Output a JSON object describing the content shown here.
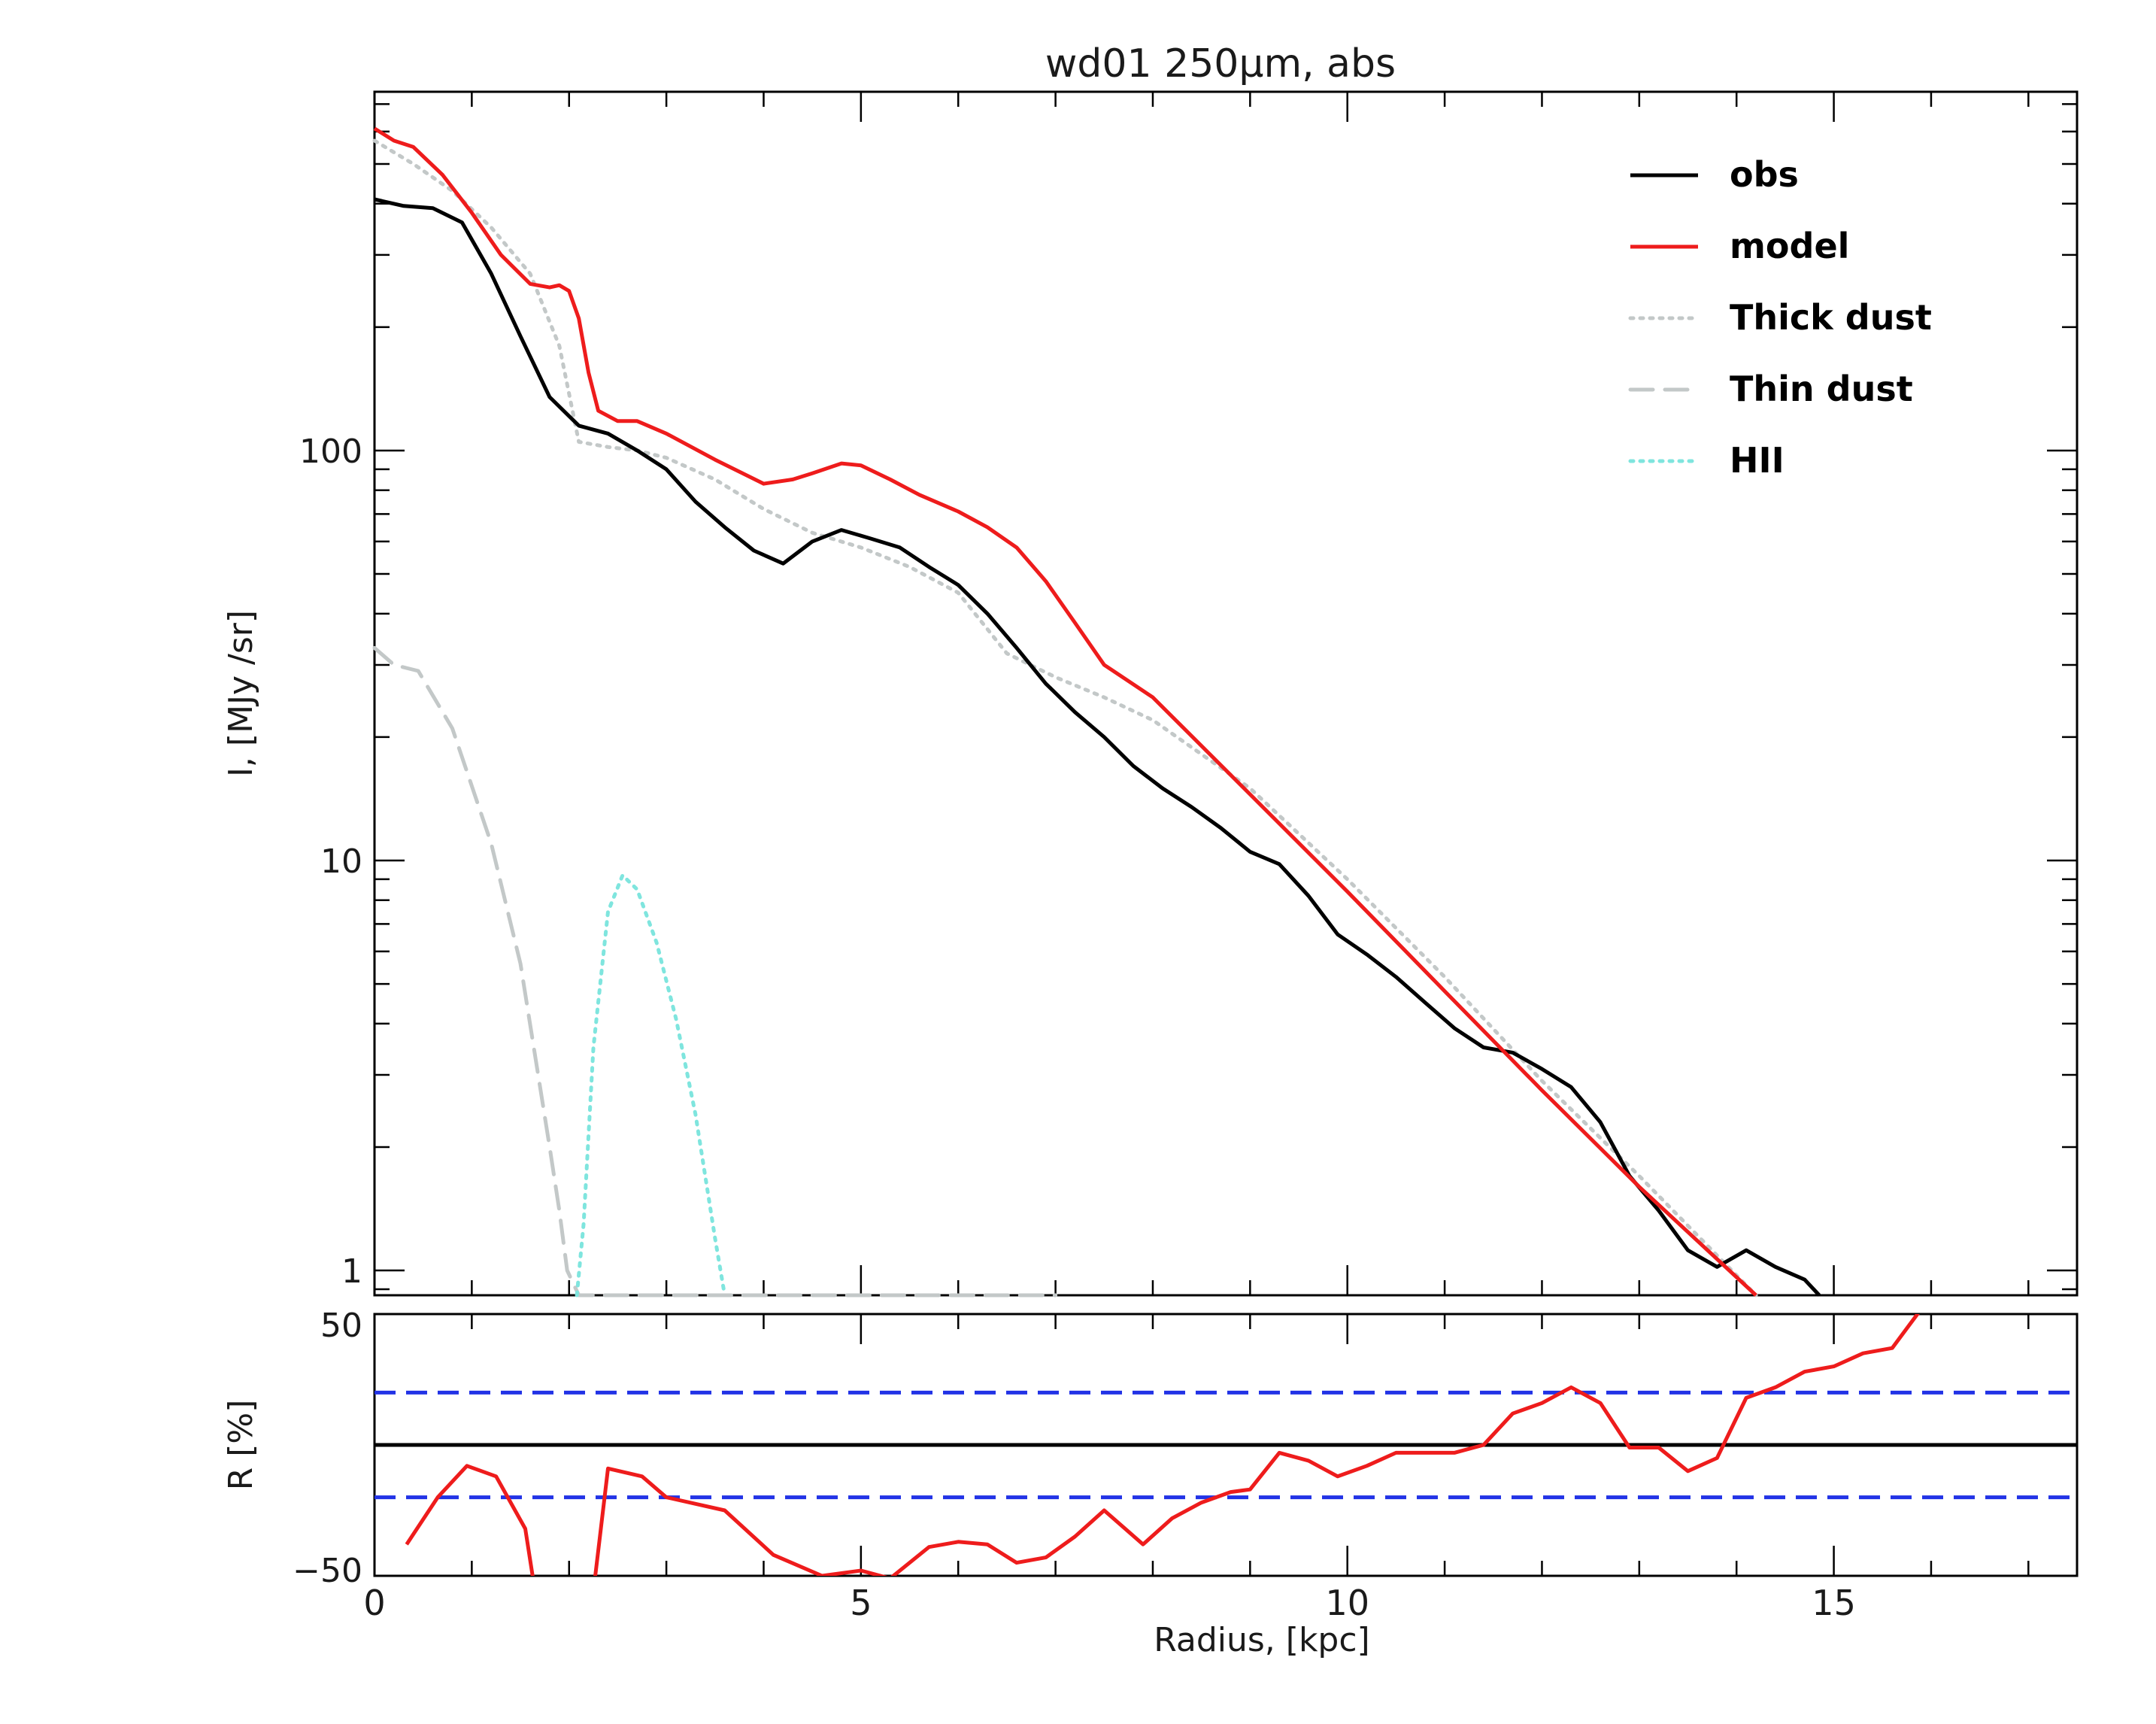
{
  "chart_data": {
    "title": "wd01 250μm, abs",
    "xlabel": "Radius, [kpc]",
    "xlim": [
      0,
      17.5
    ],
    "top_panel": {
      "type": "line",
      "ylabel": "I, [MJy /sr]",
      "yscale": "log",
      "ylim": [
        0.87,
        750
      ],
      "yticks": [
        1,
        10,
        100
      ],
      "yticklabels": [
        "1",
        "10",
        "100"
      ],
      "legend_position": "top-right",
      "series": [
        {
          "name": "obs",
          "color": "#000000",
          "style": "solid",
          "x": [
            0,
            0.3,
            0.6,
            0.9,
            1.2,
            1.5,
            1.8,
            2.1,
            2.4,
            2.7,
            3.0,
            3.3,
            3.6,
            3.9,
            4.2,
            4.5,
            4.8,
            5.1,
            5.4,
            5.7,
            6.0,
            6.3,
            6.6,
            6.9,
            7.2,
            7.5,
            7.8,
            8.1,
            8.4,
            8.7,
            9.0,
            9.3,
            9.6,
            9.9,
            10.2,
            10.5,
            10.8,
            11.1,
            11.4,
            11.7,
            12.0,
            12.3,
            12.6,
            12.9,
            13.2,
            13.5,
            13.8,
            14.1,
            14.4,
            14.7,
            14.85
          ],
          "y": [
            410,
            395,
            390,
            360,
            270,
            190,
            135,
            115,
            110,
            100,
            90,
            75,
            65,
            57,
            53,
            60,
            64,
            61,
            58,
            52,
            47,
            40,
            33,
            27,
            23,
            20,
            17,
            15,
            13.5,
            12,
            10.5,
            9.8,
            8.2,
            6.6,
            5.9,
            5.2,
            4.5,
            3.9,
            3.5,
            3.4,
            3.1,
            2.8,
            2.3,
            1.7,
            1.4,
            1.12,
            1.02,
            1.12,
            1.02,
            0.95,
            0.87
          ]
        },
        {
          "name": "model",
          "color": "#ee1c1c",
          "style": "solid",
          "x": [
            0,
            0.2,
            0.4,
            0.7,
            1.0,
            1.3,
            1.6,
            1.8,
            1.9,
            2.0,
            2.1,
            2.2,
            2.3,
            2.5,
            2.7,
            3.0,
            3.5,
            4.0,
            4.3,
            4.5,
            4.8,
            5.0,
            5.3,
            5.6,
            6.0,
            6.3,
            6.6,
            6.9,
            7.2,
            7.5,
            8.0,
            9.0,
            10.0,
            11.0,
            12.0,
            13.0,
            14.2
          ],
          "y": [
            610,
            570,
            550,
            470,
            380,
            300,
            255,
            250,
            253,
            245,
            210,
            155,
            125,
            118,
            118,
            110,
            95,
            83,
            85,
            88,
            93,
            92,
            85,
            78,
            71,
            65,
            58,
            48,
            38,
            30,
            25,
            14.5,
            8.4,
            4.8,
            2.75,
            1.6,
            0.87
          ]
        },
        {
          "name": "Thick dust",
          "color": "#c3c8c8",
          "style": "dotted",
          "x": [
            0,
            0.4,
            0.8,
            1.2,
            1.6,
            1.9,
            2.1,
            2.4,
            2.7,
            3.0,
            3.5,
            4.0,
            4.5,
            5.0,
            5.5,
            6.0,
            6.5,
            7.0,
            7.5,
            8.0,
            9.0,
            10.0,
            11.0,
            12.0,
            13.0,
            14.2
          ],
          "y": [
            570,
            500,
            430,
            350,
            270,
            180,
            105,
            102,
            100,
            96,
            85,
            72,
            63,
            58,
            52,
            45,
            32,
            28,
            25,
            22,
            15,
            9,
            5.2,
            2.9,
            1.7,
            0.87
          ]
        },
        {
          "name": "Thin dust",
          "color": "#c3c8c8",
          "style": "dashed",
          "x": [
            0,
            0.2,
            0.45,
            0.8,
            1.2,
            1.5,
            1.8,
            1.9,
            1.98,
            2.1,
            2.4,
            2.7,
            3.2,
            4.0,
            5.0,
            5.6,
            6.0,
            6.2,
            6.6,
            6.8,
            6.9,
            7.0
          ],
          "y": [
            33,
            30,
            29,
            21,
            11,
            5.6,
            2.0,
            1.4,
            1.0,
            0.87,
            0.87,
            0.87,
            0.87,
            0.87,
            0.87,
            0.87,
            0.87,
            0.87,
            0.87,
            0.87,
            0.87,
            0.87
          ]
        },
        {
          "name": "HII",
          "color": "#7fe5de",
          "style": "dotted",
          "x": [
            2.08,
            2.15,
            2.25,
            2.4,
            2.55,
            2.7,
            2.9,
            3.1,
            3.3,
            3.5,
            3.6
          ],
          "y": [
            0.87,
            1.3,
            3.5,
            7.5,
            9.2,
            8.5,
            6.3,
            4.1,
            2.4,
            1.2,
            0.87
          ]
        }
      ]
    },
    "bottom_panel": {
      "type": "line",
      "ylabel": "R [%]",
      "ylim": [
        -50,
        50
      ],
      "yticks": [
        -50,
        50
      ],
      "yticklabels": [
        "−50",
        "50"
      ],
      "reference_lines": [
        {
          "y": 0,
          "color": "#000000",
          "style": "solid"
        },
        {
          "y": 20,
          "color": "#2233e6",
          "style": "dashed"
        },
        {
          "y": -20,
          "color": "#2233e6",
          "style": "dashed"
        }
      ],
      "series": [
        {
          "name": "",
          "color": "#ee1c1c",
          "style": "solid",
          "x": [
            0.33,
            0.65,
            0.95,
            1.25,
            1.55,
            1.65,
            2.25,
            2.4,
            2.75,
            3.0,
            3.6,
            4.1,
            4.6,
            5.0,
            5.3,
            5.7,
            6.0,
            6.3,
            6.6,
            6.9,
            7.2,
            7.5,
            7.9,
            8.2,
            8.5,
            8.8,
            9.0,
            9.3,
            9.6,
            9.9,
            10.2,
            10.5,
            10.8,
            11.1,
            11.4,
            11.7,
            12.0,
            12.3,
            12.6,
            12.9,
            13.2,
            13.5,
            13.8,
            14.1,
            14.4,
            14.7,
            15.0,
            15.3,
            15.6,
            15.9
          ],
          "y": [
            -38,
            -20,
            -8,
            -12,
            -32,
            -56,
            -56,
            -9,
            -12,
            -20,
            -25,
            -42,
            -50,
            -48,
            -51,
            -39,
            -37,
            -38,
            -45,
            -43,
            -35,
            -25,
            -38,
            -28,
            -22,
            -18,
            -17,
            -3,
            -6,
            -12,
            -8,
            -3,
            -3,
            -3,
            0,
            12,
            16,
            22,
            16,
            -1,
            -1,
            -10,
            -5,
            18,
            22,
            28,
            30,
            35,
            37,
            52
          ]
        }
      ]
    },
    "xticks": [
      0,
      5,
      10,
      15
    ],
    "xticklabels": [
      "0",
      "5",
      "10",
      "15"
    ]
  }
}
